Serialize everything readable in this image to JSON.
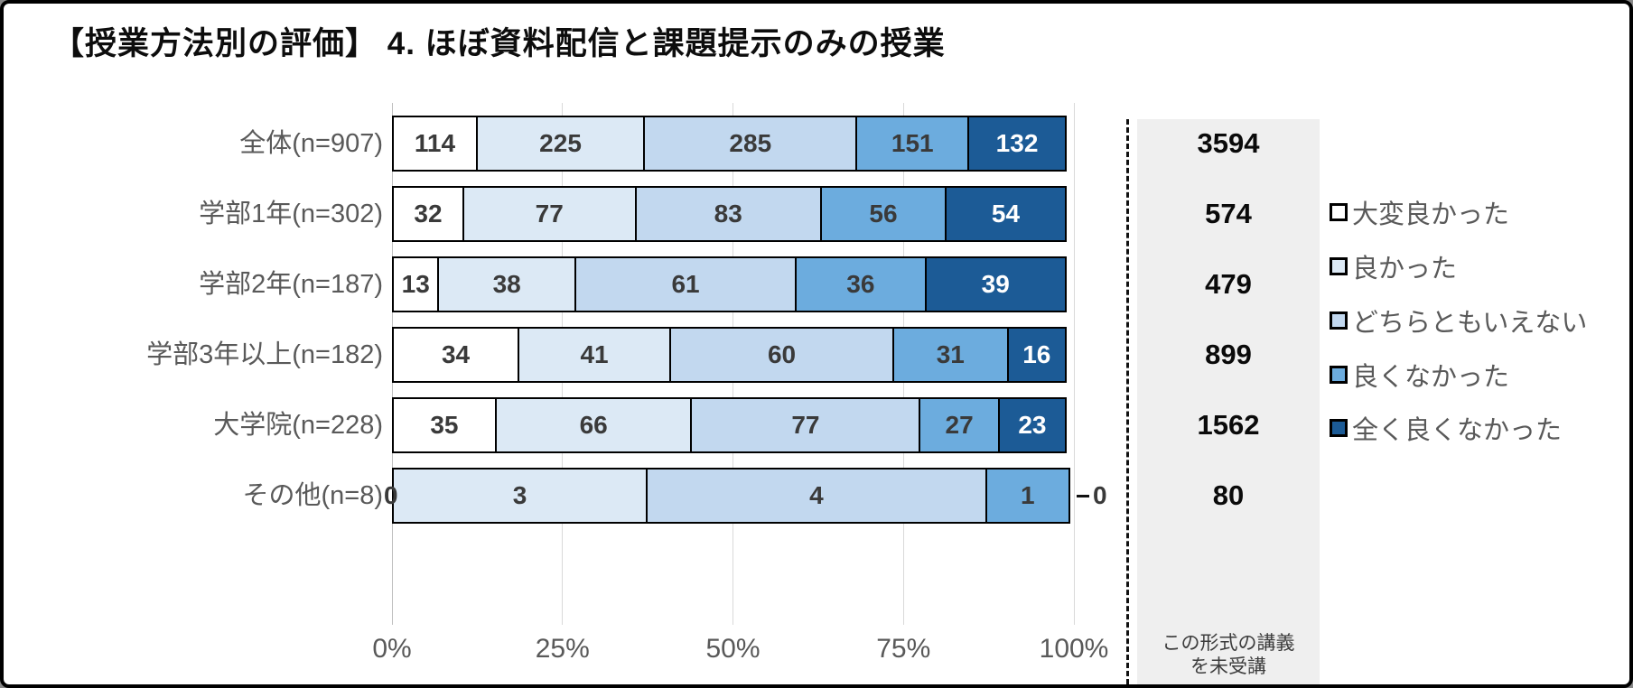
{
  "title": "【授業方法別の評価】 4. ほぼ資料配信と課題提示のみの授業",
  "chart_data": {
    "type": "bar",
    "orientation": "horizontal_stacked_100pct",
    "title": "【授業方法別の評価】 4. ほぼ資料配信と課題提示のみの授業",
    "categories": [
      "全体(n=907)",
      "学部1年(n=302)",
      "学部2年(n=187)",
      "学部3年以上(n=182)",
      "大学院(n=228)",
      "その他(n=8)"
    ],
    "series": [
      {
        "name": "大変良かった",
        "color": "#ffffff",
        "text_color": "#3a3a3a",
        "values": [
          114,
          32,
          13,
          34,
          35,
          0
        ]
      },
      {
        "name": "良かった",
        "color": "#dce9f5",
        "text_color": "#3a3a3a",
        "values": [
          225,
          77,
          38,
          41,
          66,
          3
        ]
      },
      {
        "name": "どちらともいえない",
        "color": "#c2d8ef",
        "text_color": "#3a3a3a",
        "values": [
          285,
          83,
          61,
          60,
          77,
          4
        ]
      },
      {
        "name": "良くなかった",
        "color": "#6cacde",
        "text_color": "#3a3a3a",
        "values": [
          151,
          56,
          36,
          31,
          27,
          1
        ]
      },
      {
        "name": "全く良くなかった",
        "color": "#1c5b96",
        "text_color": "#ffffff",
        "values": [
          132,
          54,
          39,
          16,
          23,
          0
        ]
      }
    ],
    "not_attended_column": {
      "label": "この形式の講義を未受講",
      "values": [
        3594,
        574,
        479,
        899,
        1562,
        80
      ]
    },
    "x_ticks": [
      "0%",
      "25%",
      "50%",
      "75%",
      "100%"
    ],
    "xlim": [
      0,
      100
    ],
    "grid": true,
    "legend_position": "right",
    "colors": {
      "grid": "#d9d9d9",
      "axis_text": "#595959",
      "segment_border": "#000000",
      "panel_background": "#efefef"
    }
  }
}
